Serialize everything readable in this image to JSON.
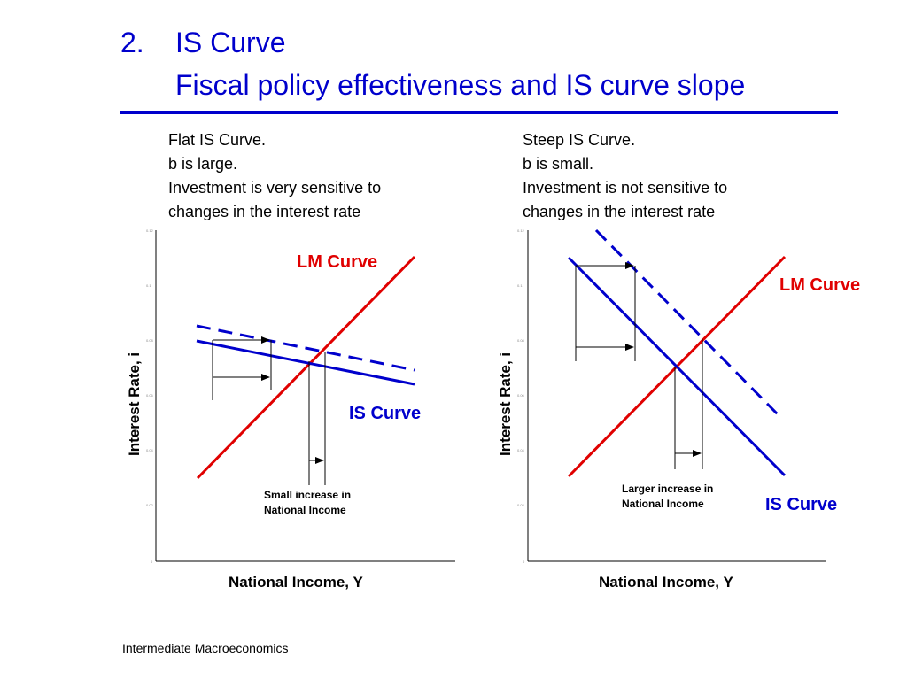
{
  "slide": {
    "number": "2.",
    "title_line1": "IS Curve",
    "title_line2": "Fiscal policy effectiveness and IS curve slope",
    "footer": "Intermediate Macroeconomics"
  },
  "left": {
    "caption": [
      "Flat IS Curve.",
      "b is large.",
      "Investment is very sensitive to",
      "changes in the interest rate"
    ],
    "lm_label": "LM Curve",
    "is_label": "IS Curve",
    "note_line1": "Small increase in",
    "note_line2": "National Income",
    "ylabel": "Interest Rate, i",
    "xlabel": "National Income, Y"
  },
  "right": {
    "caption": [
      "Steep IS Curve.",
      "b is small.",
      "Investment is not sensitive to",
      "changes in the interest rate"
    ],
    "lm_label": "LM Curve",
    "is_label": "IS Curve",
    "note_line1": "Larger increase in",
    "note_line2": "National Income",
    "ylabel": "Interest Rate, i",
    "xlabel": "National Income, Y"
  },
  "colors": {
    "lm": "#e00000",
    "is": "#0000cc",
    "title": "#0000cc",
    "axis": "#000000"
  }
}
